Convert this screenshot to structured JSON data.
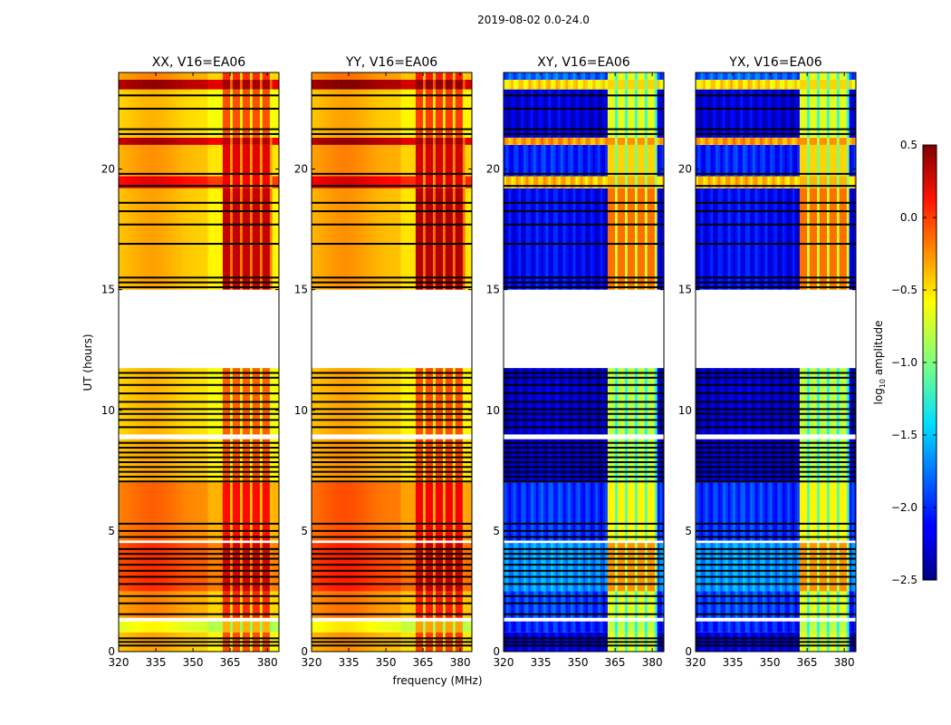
{
  "chart_data": {
    "type": "heatmap",
    "title": "2019-08-02 0.0-24.0",
    "xlabel": "frequency (MHz)",
    "ylabel": "UT (hours)",
    "xlim": [
      320,
      384.7
    ],
    "ylim": [
      0,
      24
    ],
    "xticks": [
      "320",
      "335",
      "350",
      "365",
      "380"
    ],
    "xtick_values": [
      320,
      335,
      350,
      365,
      380
    ],
    "yticks": [
      "0",
      "5",
      "10",
      "15",
      "20"
    ],
    "ytick_values": [
      0,
      5,
      10,
      15,
      20
    ],
    "rfi_band_mhz": [
      362,
      382
    ],
    "colorbar": {
      "label": "log10 amplitude",
      "label_main": "log",
      "label_sub": "10",
      "label_rest": " amplitude",
      "range": [
        -2.5,
        0.5
      ],
      "colormap": "jet",
      "ticks": [
        "0.5",
        "0.0",
        "−0.5",
        "−1.0",
        "−1.5",
        "−2.0",
        "−2.5"
      ],
      "tick_values": [
        0.5,
        0.0,
        -0.5,
        -1.0,
        -1.5,
        -2.0,
        -2.5
      ]
    },
    "panels": [
      {
        "title": "XX, V16=EA06",
        "kind": "parallel",
        "offset": 0.0
      },
      {
        "title": "YY, V16=EA06",
        "kind": "parallel",
        "offset": 0.05
      },
      {
        "title": "XY, V16=EA06",
        "kind": "cross",
        "offset": 0.0
      },
      {
        "title": "YX, V16=EA06",
        "kind": "cross",
        "offset": 0.0
      }
    ],
    "time_segments_parallel": [
      {
        "t": [
          0.0,
          0.8
        ],
        "low": -0.5,
        "high": -0.2
      },
      {
        "t": [
          0.8,
          1.25
        ],
        "low": -0.75,
        "high": -0.5
      },
      {
        "t": [
          1.4,
          2.5
        ],
        "low": -0.4,
        "high": -0.1
      },
      {
        "t": [
          2.5,
          4.5
        ],
        "low": -0.15,
        "high": 0.15
      },
      {
        "t": [
          4.6,
          7.0
        ],
        "low": -0.3,
        "high": 0.0
      },
      {
        "t": [
          7.0,
          8.8
        ],
        "low": -0.5,
        "high": -0.2
      },
      {
        "t": [
          9.0,
          11.75
        ],
        "low": -0.55,
        "high": -0.25
      },
      {
        "t": [
          15.0,
          19.2
        ],
        "low": -0.5,
        "high": 0.2
      },
      {
        "t": [
          19.2,
          19.7
        ],
        "low": 0.05,
        "high": 0.05
      },
      {
        "t": [
          19.7,
          21.0
        ],
        "low": -0.45,
        "high": 0.1
      },
      {
        "t": [
          21.0,
          21.3
        ],
        "low": 0.25,
        "high": 0.25
      },
      {
        "t": [
          21.3,
          23.3
        ],
        "low": -0.55,
        "high": -0.2
      },
      {
        "t": [
          23.3,
          23.7
        ],
        "low": 0.3,
        "high": 0.3
      },
      {
        "t": [
          23.7,
          24.0
        ],
        "low": -0.4,
        "high": -0.1
      }
    ],
    "time_segments_cross": [
      {
        "t": [
          0.0,
          0.8
        ],
        "low": -2.3,
        "high": -0.8
      },
      {
        "t": [
          0.8,
          1.25
        ],
        "low": -2.1,
        "high": -0.9
      },
      {
        "t": [
          1.4,
          2.5
        ],
        "low": -2.0,
        "high": -0.8
      },
      {
        "t": [
          2.5,
          4.5
        ],
        "low": -1.75,
        "high": -0.4
      },
      {
        "t": [
          4.6,
          7.0
        ],
        "low": -2.05,
        "high": -0.7
      },
      {
        "t": [
          7.0,
          8.8
        ],
        "low": -2.35,
        "high": -0.9
      },
      {
        "t": [
          9.0,
          11.75
        ],
        "low": -2.35,
        "high": -0.9
      },
      {
        "t": [
          15.0,
          19.2
        ],
        "low": -2.2,
        "high": -0.3
      },
      {
        "t": [
          19.2,
          19.7
        ],
        "low": -0.5,
        "high": -0.5
      },
      {
        "t": [
          19.7,
          21.0
        ],
        "low": -2.1,
        "high": -0.6
      },
      {
        "t": [
          21.0,
          21.3
        ],
        "low": -0.4,
        "high": -0.4
      },
      {
        "t": [
          21.3,
          23.3
        ],
        "low": -2.3,
        "high": -0.8
      },
      {
        "t": [
          23.3,
          23.7
        ],
        "low": -0.6,
        "high": -0.6
      },
      {
        "t": [
          23.7,
          24.0
        ],
        "low": -1.9,
        "high": -0.8
      }
    ],
    "flagged_black_rows_hours": [
      0.25,
      0.4,
      0.55,
      1.55,
      2.0,
      2.3,
      2.8,
      3.1,
      3.35,
      3.6,
      3.85,
      4.05,
      4.25,
      4.75,
      5.0,
      5.3,
      7.05,
      7.25,
      7.45,
      7.65,
      7.85,
      8.05,
      8.25,
      8.45,
      8.65,
      9.3,
      9.6,
      9.85,
      10.05,
      10.35,
      10.7,
      11.05,
      11.35,
      11.55,
      15.1,
      15.3,
      15.5,
      16.9,
      17.7,
      18.25,
      18.6,
      19.3,
      19.8,
      21.45,
      21.65,
      22.5,
      23.05
    ]
  }
}
